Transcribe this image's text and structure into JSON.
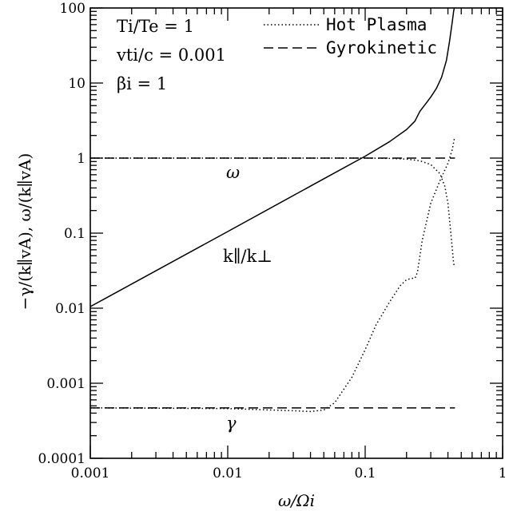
{
  "chart_data": {
    "type": "line",
    "x_scale": "log",
    "y_scale": "log",
    "xlim": [
      0.001,
      1
    ],
    "ylim": [
      0.0001,
      100
    ],
    "x_tick_labels": [
      "0.001",
      "0.01",
      "0.1",
      "1"
    ],
    "y_tick_labels": [
      "0.0001",
      "0.001",
      "0.01",
      "0.1",
      "1",
      "10",
      "100"
    ],
    "grid": false,
    "legend_position": "top-right",
    "legend": [
      {
        "label": "Hot Plasma",
        "style": "dotted"
      },
      {
        "label": "Gyrokinetic",
        "style": "dashed"
      }
    ],
    "xlabel": "ω/Ωi",
    "ylabel": "−γ/(k∥vA), ω/(k∥vA)",
    "parameters": {
      "line1": {
        "name": "Ti/Te",
        "value": "1"
      },
      "line2": {
        "name": "vti/c",
        "value": "0.001"
      },
      "line3": {
        "name": "βi",
        "value": "1"
      }
    },
    "annotations": {
      "omega": "ω",
      "gamma": "γ",
      "kratio": "k∥/k⊥"
    },
    "series": [
      {
        "style": "solid",
        "x": [
          0.001,
          0.01,
          0.05,
          0.1,
          0.15,
          0.2,
          0.23,
          0.25,
          0.28,
          0.3,
          0.33,
          0.36,
          0.39,
          0.41,
          0.43,
          0.44,
          0.445
        ],
        "y": [
          0.0105,
          0.105,
          0.53,
          1.06,
          1.65,
          2.4,
          3.1,
          4.2,
          5.5,
          6.5,
          8.5,
          12,
          20,
          35,
          65,
          90,
          100
        ]
      },
      {
        "name": "Gyrokinetic ω",
        "style": "dashed",
        "x": [
          0.001,
          0.45
        ],
        "y": [
          1.0,
          1.0
        ]
      },
      {
        "name": "Gyrokinetic γ",
        "style": "dashed",
        "x": [
          0.001,
          0.45
        ],
        "y": [
          0.00047,
          0.00047
        ]
      },
      {
        "name": "Hot Plasma ω",
        "style": "dotted",
        "x": [
          0.001,
          0.1,
          0.15,
          0.2,
          0.25,
          0.3,
          0.35,
          0.38,
          0.4,
          0.42,
          0.44,
          0.445
        ],
        "y": [
          1.0,
          1.0,
          0.99,
          0.97,
          0.92,
          0.82,
          0.62,
          0.42,
          0.25,
          0.1,
          0.04,
          0.036
        ]
      },
      {
        "name": "Hot Plasma γ",
        "style": "dotted",
        "x": [
          0.001,
          0.01,
          0.03,
          0.04,
          0.05,
          0.06,
          0.08,
          0.1,
          0.12,
          0.15,
          0.18,
          0.2,
          0.22,
          0.23,
          0.24,
          0.26,
          0.3,
          0.35,
          0.4,
          0.43,
          0.445
        ],
        "y": [
          0.00047,
          0.00046,
          0.00043,
          0.00042,
          0.00044,
          0.00055,
          0.0012,
          0.0028,
          0.006,
          0.012,
          0.02,
          0.024,
          0.025,
          0.025,
          0.03,
          0.08,
          0.25,
          0.5,
          0.85,
          1.3,
          1.8
        ]
      }
    ]
  }
}
